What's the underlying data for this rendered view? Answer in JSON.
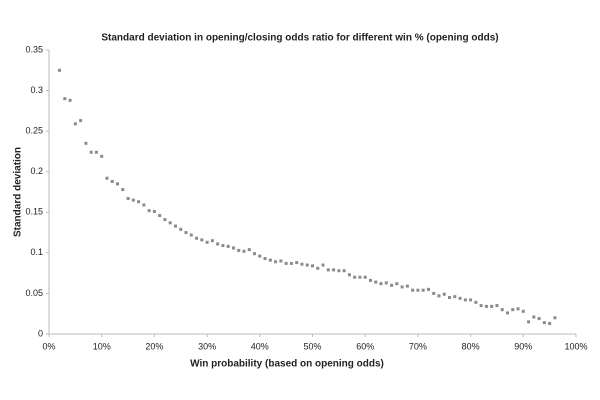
{
  "chart_data": {
    "type": "scatter",
    "title": "Standard deviation in opening/closing odds ratio for different win % (opening odds)",
    "x_label": "Win probability (based on opening odds)",
    "y_label": "Standard deviation",
    "color": "#8a8a8a",
    "x": [
      2,
      3,
      4,
      5,
      6,
      7,
      8,
      9,
      10,
      11,
      12,
      13,
      14,
      15,
      16,
      17,
      18,
      19,
      20,
      21,
      22,
      23,
      24,
      25,
      26,
      27,
      28,
      29,
      30,
      31,
      32,
      33,
      34,
      35,
      36,
      37,
      38,
      39,
      40,
      41,
      42,
      43,
      44,
      45,
      46,
      47,
      48,
      49,
      50,
      51,
      52,
      53,
      54,
      55,
      56,
      57,
      58,
      59,
      60,
      61,
      62,
      63,
      64,
      65,
      66,
      67,
      68,
      69,
      70,
      71,
      72,
      73,
      74,
      75,
      76,
      77,
      78,
      79,
      80,
      81,
      82,
      83,
      84,
      85,
      86,
      87,
      88,
      89,
      90,
      91,
      92,
      93,
      94,
      95,
      96
    ],
    "values": [
      0.325,
      0.29,
      0.288,
      0.259,
      0.263,
      0.235,
      0.224,
      0.224,
      0.219,
      0.192,
      0.188,
      0.185,
      0.178,
      0.167,
      0.165,
      0.163,
      0.159,
      0.152,
      0.151,
      0.146,
      0.141,
      0.137,
      0.133,
      0.129,
      0.125,
      0.122,
      0.118,
      0.116,
      0.113,
      0.115,
      0.111,
      0.109,
      0.108,
      0.106,
      0.103,
      0.102,
      0.104,
      0.099,
      0.096,
      0.093,
      0.091,
      0.089,
      0.09,
      0.087,
      0.087,
      0.088,
      0.086,
      0.085,
      0.084,
      0.081,
      0.085,
      0.079,
      0.079,
      0.078,
      0.078,
      0.073,
      0.07,
      0.07,
      0.07,
      0.066,
      0.064,
      0.062,
      0.063,
      0.06,
      0.062,
      0.058,
      0.059,
      0.054,
      0.054,
      0.054,
      0.055,
      0.05,
      0.047,
      0.049,
      0.045,
      0.046,
      0.044,
      0.042,
      0.042,
      0.039,
      0.035,
      0.034,
      0.034,
      0.035,
      0.03,
      0.026,
      0.03,
      0.031,
      0.028,
      0.015,
      0.021,
      0.019,
      0.014,
      0.013,
      0.02
    ],
    "xlim": [
      0,
      100
    ],
    "xticks": [
      {
        "value": 0,
        "label": "0%"
      },
      {
        "value": 10,
        "label": "10%"
      },
      {
        "value": 20,
        "label": "20%"
      },
      {
        "value": 30,
        "label": "30%"
      },
      {
        "value": 40,
        "label": "40%"
      },
      {
        "value": 50,
        "label": "50%"
      },
      {
        "value": 60,
        "label": "60%"
      },
      {
        "value": 70,
        "label": "70%"
      },
      {
        "value": 80,
        "label": "80%"
      },
      {
        "value": 90,
        "label": "90%"
      },
      {
        "value": 100,
        "label": "100%"
      }
    ],
    "ylim": [
      0,
      0.35
    ],
    "yticks": [
      0,
      0.05,
      0.1,
      0.15,
      0.2,
      0.25,
      0.3,
      0.35
    ],
    "grid": false
  }
}
